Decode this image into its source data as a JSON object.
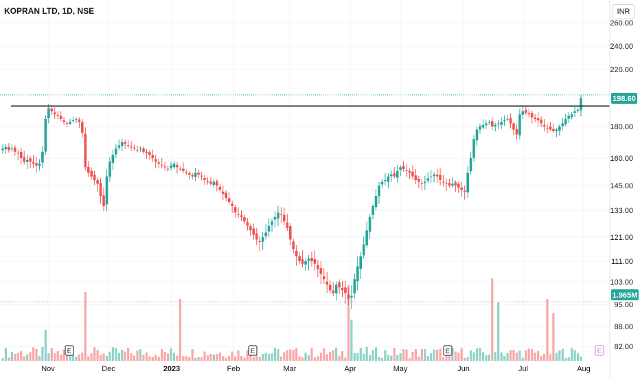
{
  "header": {
    "symbol_title": "KOPRAN LTD, 1D, NSE",
    "currency": "INR"
  },
  "badges": {
    "last_price": "198.60",
    "last_volume": "1.965M"
  },
  "event_markers": [
    "E",
    "E",
    "E",
    "E"
  ],
  "colors": {
    "up": "#26a69a",
    "down": "#ef5350",
    "volume_up": "#8fd3c8",
    "volume_down": "#f7a9a7",
    "line": "#131722",
    "last_price_badge": "#26a69a",
    "volume_badge": "#26a69a",
    "grid": "#f0f3fa",
    "event_future": "#c77dd7"
  },
  "chart_data": {
    "type": "candlestick",
    "title": "KOPRAN LTD, 1D, NSE",
    "y_axis": {
      "scale": "log",
      "ticks": [
        "260.00",
        "240.00",
        "220.00",
        "198.60",
        "180.00",
        "160.00",
        "145.00",
        "133.00",
        "121.00",
        "111.00",
        "103.00",
        "95.00",
        "88.00",
        "82.00"
      ],
      "range": [
        79,
        268
      ]
    },
    "x_axis": {
      "ticks": [
        "Nov",
        "Dec",
        "2023",
        "Feb",
        "Mar",
        "Apr",
        "May",
        "Jun",
        "Jul",
        "Aug"
      ]
    },
    "horizontal_line": 193.5,
    "last_close": 198.6,
    "last_volume": "1.965M",
    "grid": true,
    "series": [
      {
        "values": [
          166,
          167,
          165,
          166,
          164,
          163,
          160,
          158,
          159,
          158,
          157,
          156,
          157,
          164,
          185,
          192,
          190,
          188,
          187,
          185,
          183,
          182,
          183,
          184,
          185,
          183,
          176,
          155,
          152,
          150,
          148,
          146,
          140,
          135,
          150,
          158,
          162,
          166,
          168,
          170,
          169,
          168,
          167,
          166,
          165,
          166,
          164,
          163,
          162,
          160,
          158,
          157,
          156,
          155,
          154,
          156,
          157,
          155,
          154,
          153,
          152,
          151,
          150,
          152,
          151,
          150,
          148,
          147,
          146,
          147,
          145,
          143,
          141,
          139,
          137,
          135,
          132,
          131,
          130,
          128,
          126,
          124,
          122,
          120,
          119,
          121,
          123,
          126,
          128,
          130,
          132,
          131,
          128,
          125,
          120,
          116,
          113,
          111,
          110,
          111,
          112,
          111,
          110,
          108,
          106,
          104,
          102,
          100,
          99,
          102,
          101,
          100,
          99,
          97,
          98,
          104,
          109,
          113,
          118,
          124,
          130,
          135,
          140,
          145,
          147,
          148,
          150,
          151,
          150,
          153,
          155,
          154,
          153,
          152,
          150,
          148,
          147,
          146,
          147,
          149,
          150,
          151,
          150,
          148,
          147,
          146,
          145,
          146,
          145,
          144,
          143,
          142,
          152,
          160,
          172,
          178,
          180,
          181,
          182,
          183,
          180,
          181,
          182,
          183,
          184,
          185,
          182,
          178,
          175,
          188,
          190,
          189,
          188,
          186,
          185,
          184,
          182,
          180,
          179,
          178,
          177,
          178,
          180,
          182,
          185,
          187,
          188,
          190,
          191,
          198.6
        ]
      }
    ],
    "volume_note": "relative volume bars shown along bottom"
  }
}
